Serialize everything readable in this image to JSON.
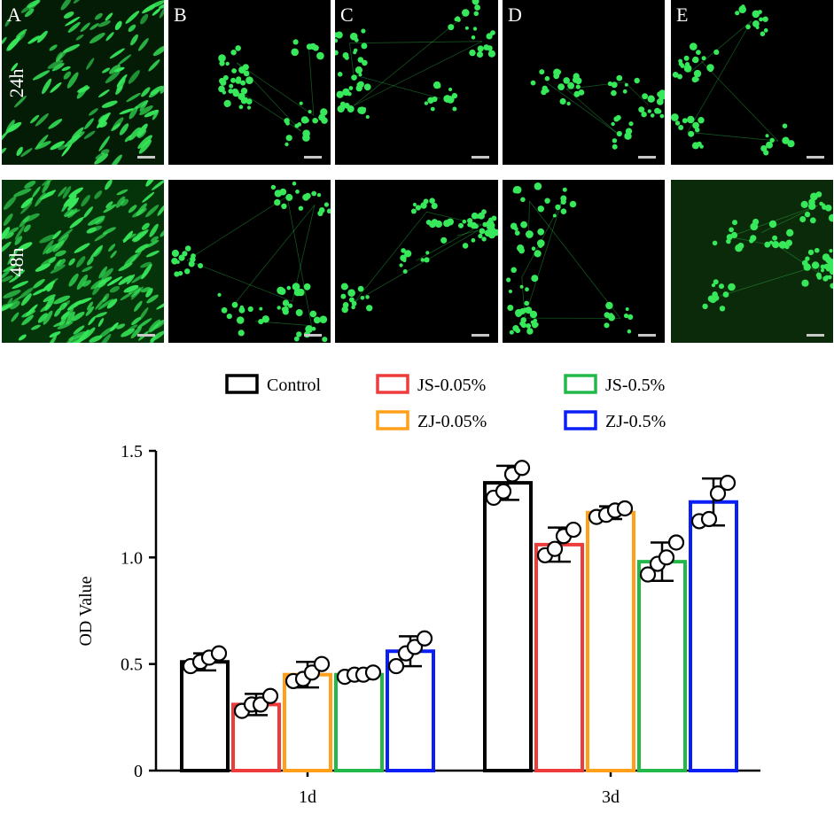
{
  "micrographs": {
    "panel_letters": [
      "A",
      "B",
      "C",
      "D",
      "E"
    ],
    "row_labels": [
      "24h",
      "48h"
    ]
  },
  "colors": {
    "Control": "#000000",
    "JS-0.05%": "#ee3b3b",
    "ZJ-0.05%": "#ff9f1a",
    "JS-0.5%": "#22b84a",
    "ZJ-0.5%": "#0a1ff5",
    "cell_green": "#37e85a"
  },
  "chart_data": {
    "type": "bar",
    "categories": [
      "1d",
      "3d"
    ],
    "ylabel": "OD Value",
    "xlabel": "",
    "ylim": [
      0,
      1.5
    ],
    "yticks": [
      "0",
      "0.5",
      "1.0",
      "1.5"
    ],
    "legend": [
      "Control",
      "JS-0.05%",
      "JS-0.5%",
      "ZJ-0.05%",
      "ZJ-0.5%"
    ],
    "series": [
      {
        "name": "Control",
        "values": [
          0.51,
          1.35
        ],
        "sd": [
          0.04,
          0.08
        ],
        "points": [
          [
            0.49,
            0.51,
            0.53,
            0.55
          ],
          [
            1.28,
            1.31,
            1.39,
            1.42
          ]
        ]
      },
      {
        "name": "JS-0.05%",
        "values": [
          0.31,
          1.06
        ],
        "sd": [
          0.05,
          0.08
        ],
        "points": [
          [
            0.28,
            0.31,
            0.31,
            0.35
          ],
          [
            1.01,
            1.04,
            1.1,
            1.13
          ]
        ]
      },
      {
        "name": "ZJ-0.05%",
        "values": [
          0.45,
          1.21
        ],
        "sd": [
          0.06,
          0.03
        ],
        "points": [
          [
            0.42,
            0.43,
            0.46,
            0.5
          ],
          [
            1.19,
            1.2,
            1.22,
            1.23
          ]
        ]
      },
      {
        "name": "JS-0.5%",
        "values": [
          0.45,
          0.98
        ],
        "sd": [
          0.02,
          0.09
        ],
        "points": [
          [
            0.44,
            0.45,
            0.45,
            0.46
          ],
          [
            0.92,
            0.97,
            1.0,
            1.07
          ]
        ]
      },
      {
        "name": "ZJ-0.5%",
        "values": [
          0.56,
          1.26
        ],
        "sd": [
          0.07,
          0.11
        ],
        "points": [
          [
            0.49,
            0.55,
            0.58,
            0.62
          ],
          [
            1.17,
            1.18,
            1.3,
            1.35
          ]
        ]
      }
    ]
  }
}
